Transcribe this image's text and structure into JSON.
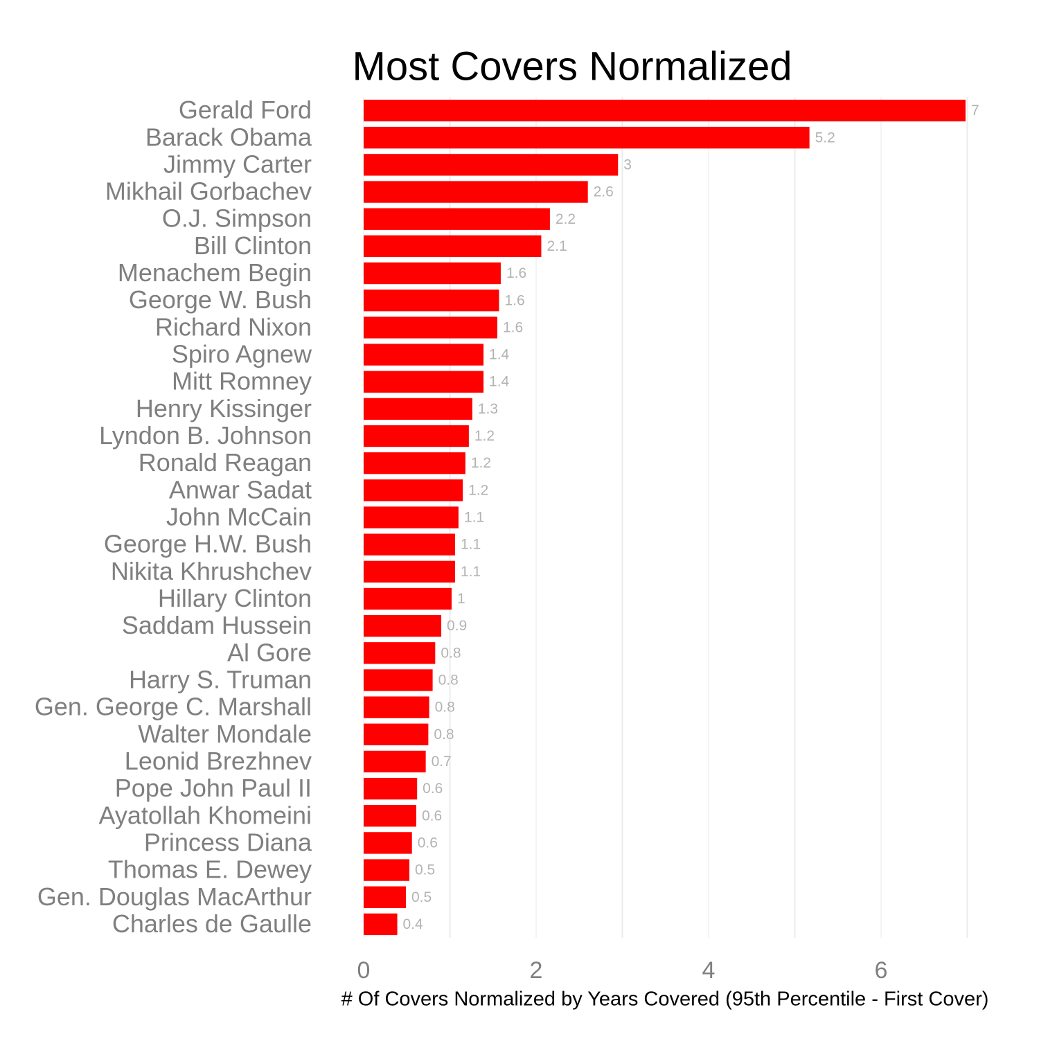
{
  "chart_data": {
    "type": "bar",
    "orientation": "horizontal",
    "title": "Most Covers Normalized",
    "x_label": "# Of Covers Normalized by Years Covered (95th Percentile - First Cover)",
    "categories": [
      "Gerald Ford",
      "Barack Obama",
      "Jimmy Carter",
      "Mikhail Gorbachev",
      "O.J. Simpson",
      "Bill Clinton",
      "Menachem Begin",
      "George W. Bush",
      "Richard Nixon",
      "Spiro Agnew",
      "Mitt Romney",
      "Henry Kissinger",
      "Lyndon B. Johnson",
      "Ronald Reagan",
      "Anwar Sadat",
      "John McCain",
      "George H.W. Bush",
      "Nikita Khrushchev",
      "Hillary Clinton",
      "Saddam Hussein",
      "Al Gore",
      "Harry S. Truman",
      "Gen. George C. Marshall",
      "Walter Mondale",
      "Leonid Brezhnev",
      "Pope John Paul II",
      "Ayatollah Khomeini",
      "Princess Diana",
      "Thomas E. Dewey",
      "Gen. Douglas MacArthur",
      "Charles de Gaulle"
    ],
    "values": [
      6.98,
      5.17,
      2.95,
      2.6,
      2.16,
      2.06,
      1.59,
      1.57,
      1.55,
      1.39,
      1.39,
      1.26,
      1.22,
      1.18,
      1.15,
      1.1,
      1.06,
      1.06,
      1.02,
      0.9,
      0.83,
      0.8,
      0.76,
      0.75,
      0.72,
      0.62,
      0.61,
      0.56,
      0.53,
      0.49,
      0.39
    ],
    "value_labels": [
      "7",
      "5.2",
      "3",
      "2.6",
      "2.2",
      "2.1",
      "1.6",
      "1.6",
      "1.6",
      "1.4",
      "1.4",
      "1.3",
      "1.2",
      "1.2",
      "1.2",
      "1.1",
      "1.1",
      "1.1",
      "1",
      "0.9",
      "0.8",
      "0.8",
      "0.8",
      "0.8",
      "0.7",
      "0.6",
      "0.6",
      "0.6",
      "0.5",
      "0.5",
      "0.4"
    ],
    "color": "#ff0000",
    "xlim": [
      0,
      7.35
    ],
    "xticks": [
      0,
      2,
      4,
      6
    ],
    "minor_xticks": [
      1,
      3,
      5,
      7
    ],
    "grid": true
  }
}
